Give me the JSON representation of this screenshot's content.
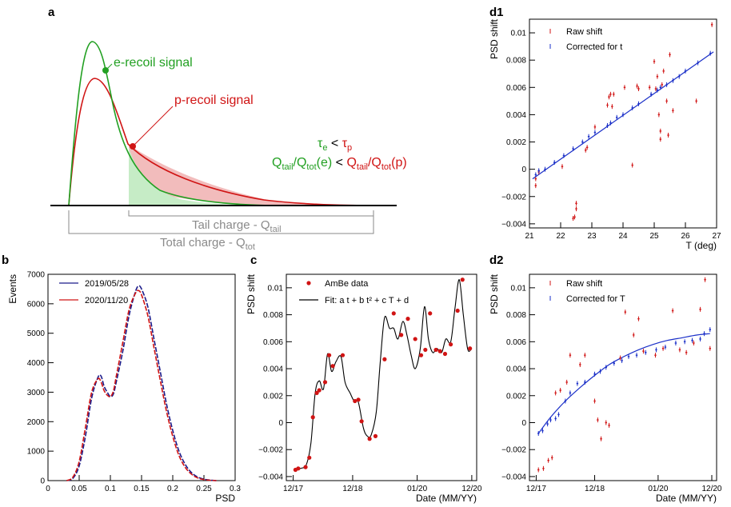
{
  "colors": {
    "green": "#22a022",
    "red": "#d01414",
    "blue": "#1a2fc8",
    "navy": "#1b1b8a",
    "gray": "#8a8a8a",
    "tailFillRed": "#f2bcbc",
    "tailFillGreen": "#c6ecc6"
  },
  "panel_a": {
    "label": "a",
    "e_recoil": "e-recoil signal",
    "p_recoil": "p-recoil signal",
    "tau": {
      "base": "τ",
      "e": "e",
      "lt": " < ",
      "p": "p"
    },
    "q": {
      "Q": "Q",
      "tail": "tail",
      "tot": "tot",
      "slash": "/",
      "e_arg": "(e)",
      "p_arg": "(p)",
      "lt": " < "
    },
    "tail_label": "Tail charge - Q",
    "tail_sub": "tail",
    "total_label": "Total charge - Q",
    "total_sub": "tot"
  },
  "chart_data": [
    {
      "panel": "b",
      "type": "line",
      "xlabel": "PSD",
      "ylabel": "Events",
      "xlim": [
        0,
        0.3
      ],
      "ylim": [
        0,
        7000
      ],
      "xticks": [
        "0",
        "0.05",
        "0.1",
        "0.15",
        "0.2",
        "0.25",
        "0.3"
      ],
      "yticks": [
        "0",
        "1000",
        "2000",
        "3000",
        "4000",
        "5000",
        "6000",
        "7000"
      ],
      "legend": "top-left",
      "series": [
        {
          "name": "2019/05/28",
          "color": "#1b1b8a",
          "x": [
            0.03,
            0.04,
            0.05,
            0.06,
            0.07,
            0.08,
            0.085,
            0.09,
            0.095,
            0.1,
            0.105,
            0.11,
            0.12,
            0.13,
            0.14,
            0.145,
            0.15,
            0.16,
            0.17,
            0.18,
            0.19,
            0.2,
            0.21,
            0.22,
            0.23,
            0.24,
            0.25,
            0.26,
            0.27
          ],
          "y": [
            0,
            80,
            500,
            1500,
            2800,
            3500,
            3550,
            3200,
            3000,
            2850,
            2950,
            3400,
            4400,
            5600,
            6400,
            6600,
            6500,
            5900,
            4800,
            3700,
            2600,
            1700,
            1000,
            550,
            270,
            120,
            50,
            15,
            0
          ]
        },
        {
          "name": "2020/11/20",
          "color": "#d01414",
          "x": [
            0.03,
            0.04,
            0.05,
            0.06,
            0.07,
            0.08,
            0.085,
            0.09,
            0.095,
            0.1,
            0.105,
            0.11,
            0.12,
            0.13,
            0.14,
            0.145,
            0.15,
            0.16,
            0.17,
            0.18,
            0.19,
            0.2,
            0.21,
            0.22,
            0.23,
            0.24,
            0.25,
            0.26,
            0.27
          ],
          "y": [
            0,
            120,
            650,
            1800,
            3000,
            3450,
            3350,
            3050,
            2900,
            2850,
            3050,
            3600,
            4700,
            5800,
            6350,
            6450,
            6300,
            5600,
            4500,
            3400,
            2350,
            1500,
            850,
            450,
            220,
            90,
            35,
            10,
            0
          ]
        }
      ]
    },
    {
      "panel": "c",
      "type": "scatter",
      "title": "",
      "xlabel": "Date (MM/YY)",
      "ylabel": "PSD shift",
      "xticks": [
        "12/17",
        "12/18",
        "01/20",
        "12/20"
      ],
      "ylim": [
        -0.004,
        0.011
      ],
      "yticks": [
        "−0.004",
        "−0.002",
        "0",
        "0.002",
        "0.004",
        "0.006",
        "0.008",
        "0.01"
      ],
      "legend": "top-left",
      "series": [
        {
          "name": "AmBe data",
          "color": "#d01414",
          "x": [
            "2017-12-15",
            "2018-01-01",
            "2018-02-15",
            "2018-03-10",
            "2018-04-01",
            "2018-04-25",
            "2018-05-10",
            "2018-06-15",
            "2018-07-10",
            "2018-08-01",
            "2018-10-01",
            "2018-12-15",
            "2019-01-05",
            "2019-01-25",
            "2019-03-15",
            "2019-04-20",
            "2019-06-15",
            "2019-08-10",
            "2019-09-25",
            "2019-11-05",
            "2019-12-20",
            "2020-01-25",
            "2020-02-20",
            "2020-03-20",
            "2020-04-25",
            "2020-05-20",
            "2020-06-20",
            "2020-07-25",
            "2020-09-05",
            "2020-10-05",
            "2020-11-20"
          ],
          "y": [
            -0.0035,
            -0.0034,
            -0.0033,
            -0.0026,
            0.0004,
            0.0022,
            0.0024,
            0.003,
            0.005,
            0.0042,
            0.005,
            0.0016,
            0.0017,
            0.0001,
            -0.0012,
            -0.001,
            0.0047,
            0.0081,
            0.0065,
            0.0077,
            0.0062,
            0.005,
            0.0054,
            0.0081,
            0.0054,
            0.0053,
            0.0051,
            0.0058,
            0.0083,
            0.0106,
            0.0055
          ]
        },
        {
          "name": "Fit: a t + b t² + c T + d",
          "color": "#000000",
          "x": [
            "2017-12-15",
            "2018-01-15",
            "2018-02-20",
            "2018-03-20",
            "2018-04-15",
            "2018-05-10",
            "2018-06-05",
            "2018-06-30",
            "2018-07-25",
            "2018-08-20",
            "2018-09-20",
            "2018-10-15",
            "2018-11-15",
            "2018-12-10",
            "2019-01-05",
            "2019-02-05",
            "2019-03-01",
            "2019-03-25",
            "2019-04-25",
            "2019-05-20",
            "2019-06-15",
            "2019-07-15",
            "2019-08-10",
            "2019-09-05",
            "2019-10-05",
            "2019-10-30",
            "2019-11-25",
            "2019-12-20",
            "2020-01-20",
            "2020-02-15",
            "2020-03-10",
            "2020-04-05",
            "2020-05-01",
            "2020-05-30",
            "2020-06-25",
            "2020-07-25",
            "2020-08-20",
            "2020-09-15",
            "2020-10-10",
            "2020-11-05",
            "2020-11-25"
          ],
          "y": [
            -0.0035,
            -0.0034,
            -0.0031,
            -0.0015,
            0.0022,
            0.0031,
            0.0025,
            0.0051,
            0.0038,
            0.0045,
            0.0049,
            0.003,
            0.0022,
            0.0016,
            0.0015,
            -0.0004,
            -0.001,
            -0.0009,
            0.0008,
            0.0046,
            0.0078,
            0.007,
            0.007,
            0.0062,
            0.0075,
            0.0065,
            0.005,
            0.004,
            0.0055,
            0.0086,
            0.0062,
            0.0052,
            0.0055,
            0.0052,
            0.0062,
            0.006,
            0.0085,
            0.0106,
            0.008,
            0.0055,
            0.0054
          ]
        }
      ]
    },
    {
      "panel": "d1",
      "type": "scatter",
      "xlabel": "T (deg)",
      "ylabel": "PSD shift",
      "xlim": [
        21,
        27
      ],
      "ylim": [
        -0.004,
        0.011
      ],
      "xticks": [
        "21",
        "22",
        "23",
        "24",
        "25",
        "26",
        "27"
      ],
      "yticks": [
        "−0.004",
        "−0.002",
        "0",
        "0.002",
        "0.004",
        "0.006",
        "0.008",
        "0.01"
      ],
      "legend": "top-left",
      "series": [
        {
          "name": "Raw shift",
          "color": "#d01414",
          "x": [
            21.2,
            21.2,
            21.3,
            22.05,
            22.4,
            22.45,
            22.5,
            22.5,
            22.8,
            22.85,
            23.1,
            23.5,
            23.55,
            23.6,
            23.65,
            23.7,
            24.05,
            24.3,
            24.45,
            24.5,
            24.85,
            25.0,
            25.05,
            25.1,
            25.15,
            25.2,
            25.2,
            25.25,
            25.3,
            25.4,
            25.45,
            25.5,
            25.6,
            26.35,
            26.85
          ],
          "y": [
            -0.0012,
            -0.0007,
            -0.0002,
            0.0002,
            -0.0036,
            -0.0035,
            -0.0029,
            -0.0025,
            0.0014,
            0.0016,
            0.0031,
            0.0047,
            0.0053,
            0.0055,
            0.0046,
            0.0055,
            0.006,
            0.0003,
            0.0061,
            0.0059,
            0.006,
            0.0079,
            0.0059,
            0.0068,
            0.004,
            0.0028,
            0.0022,
            0.0062,
            0.0072,
            0.005,
            0.0025,
            0.0084,
            0.0043,
            0.005,
            0.0106
          ]
        },
        {
          "name": "Corrected for t",
          "color": "#1a2fc8",
          "x": [
            21.2,
            21.3,
            21.5,
            21.8,
            22.1,
            22.4,
            22.7,
            22.9,
            23.1,
            23.5,
            23.6,
            23.8,
            24.0,
            24.3,
            24.5,
            24.9,
            25.1,
            25.2,
            25.4,
            25.6,
            25.8,
            26.0,
            26.4,
            26.8
          ],
          "y": [
            -0.0004,
            -0.0001,
            0.0,
            0.0005,
            0.001,
            0.0015,
            0.002,
            0.0024,
            0.0027,
            0.0032,
            0.0034,
            0.0038,
            0.004,
            0.0045,
            0.0048,
            0.0055,
            0.0058,
            0.006,
            0.0062,
            0.0065,
            0.0068,
            0.0072,
            0.0078,
            0.0085
          ]
        },
        {
          "name": "",
          "color": "#1a2fc8",
          "x": [
            21.1,
            26.9
          ],
          "y": [
            -0.0007,
            0.0086
          ]
        }
      ]
    },
    {
      "panel": "d2",
      "type": "scatter",
      "xlabel": "Date (MM/YY)",
      "ylabel": "PSD shift",
      "xticks": [
        "12/17",
        "12/18",
        "01/20",
        "12/20"
      ],
      "ylim": [
        -0.004,
        0.011
      ],
      "yticks": [
        "−0.004",
        "−0.002",
        "0",
        "0.002",
        "0.004",
        "0.006",
        "0.008",
        "0.01"
      ],
      "legend": "top-left",
      "series": [
        {
          "name": "Raw shift",
          "color": "#d01414",
          "x": [
            "2017-12-15",
            "2018-01-15",
            "2018-02-15",
            "2018-03-10",
            "2018-04-01",
            "2018-05-01",
            "2018-06-10",
            "2018-07-01",
            "2018-09-01",
            "2018-10-01",
            "2018-12-01",
            "2018-12-20",
            "2019-01-10",
            "2019-02-10",
            "2019-03-01",
            "2019-05-10",
            "2019-06-10",
            "2019-08-01",
            "2019-09-01",
            "2019-10-01",
            "2019-12-15",
            "2020-02-01",
            "2020-04-01",
            "2020-05-15",
            "2020-06-25",
            "2020-08-10",
            "2020-09-20",
            "2020-10-20",
            "2020-11-20"
          ],
          "y": [
            -0.0035,
            -0.0034,
            -0.0028,
            -0.0026,
            0.0022,
            0.0024,
            0.003,
            0.005,
            0.0043,
            0.005,
            0.0016,
            0.0002,
            -0.0012,
            0.0,
            -0.0002,
            0.0048,
            0.0082,
            0.0065,
            0.0077,
            0.0053,
            0.005,
            0.0055,
            0.0083,
            0.0054,
            0.0052,
            0.0059,
            0.0084,
            0.0106,
            0.0055
          ]
        },
        {
          "name": "Corrected for T",
          "color": "#1a2fc8",
          "x": [
            "2017-12-15",
            "2018-01-10",
            "2018-02-10",
            "2018-03-01",
            "2018-04-01",
            "2018-04-20",
            "2018-06-01",
            "2018-07-01",
            "2018-08-15",
            "2018-10-01",
            "2018-12-01",
            "2019-01-05",
            "2019-02-10",
            "2019-04-01",
            "2019-05-20",
            "2019-07-01",
            "2019-08-20",
            "2019-10-15",
            "2019-12-20",
            "2020-02-15",
            "2020-04-20",
            "2020-06-15",
            "2020-08-01",
            "2020-09-20",
            "2020-10-15",
            "2020-11-20"
          ],
          "y": [
            -0.0008,
            -0.0006,
            -0.0001,
            0.0002,
            0.0003,
            0.0006,
            0.0016,
            0.0022,
            0.0029,
            0.003,
            0.0036,
            0.0038,
            0.0041,
            0.0044,
            0.0046,
            0.0049,
            0.005,
            0.0052,
            0.0054,
            0.0056,
            0.0059,
            0.006,
            0.0061,
            0.0062,
            0.0066,
            0.0069
          ]
        },
        {
          "name": "",
          "color": "#1a2fc8",
          "x": [
            "2017-12-15",
            "2018-03-01",
            "2018-06-01",
            "2018-09-01",
            "2018-12-01",
            "2019-03-01",
            "2019-06-01",
            "2019-09-01",
            "2019-12-01",
            "2020-03-01",
            "2020-06-01",
            "2020-09-01",
            "2020-11-20"
          ],
          "y": [
            -0.0008,
            0.0004,
            0.0016,
            0.0026,
            0.0035,
            0.0043,
            0.0049,
            0.0054,
            0.0058,
            0.0061,
            0.0063,
            0.0065,
            0.0066
          ]
        }
      ]
    }
  ]
}
